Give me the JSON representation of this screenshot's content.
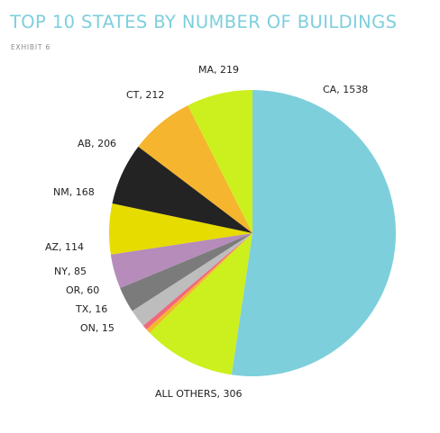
{
  "chart_data": {
    "type": "pie",
    "title": "TOP 10 STATES BY NUMBER OF BUILDINGS",
    "subtitle": "EXHIBIT 6",
    "slices": [
      {
        "label": "CA",
        "value": 1538,
        "color": "#7ecfdc",
        "text": "CA, 1538"
      },
      {
        "label": "ALL OTHERS",
        "value": 306,
        "color": "#ccf01e",
        "text": "ALL OTHERS, 306"
      },
      {
        "label": "ON",
        "value": 15,
        "color": "#f5b52e",
        "text": "ON, 15"
      },
      {
        "label": "TX",
        "value": 16,
        "color": "#f0697c",
        "text": "TX, 16"
      },
      {
        "label": "OR",
        "value": 60,
        "color": "#bdbdbd",
        "text": "OR, 60"
      },
      {
        "label": "NY",
        "value": 85,
        "color": "#7b7b7b",
        "text": "NY, 85"
      },
      {
        "label": "AZ",
        "value": 114,
        "color": "#b58cba",
        "text": "AZ, 114"
      },
      {
        "label": "NM",
        "value": 168,
        "color": "#e6dc00",
        "text": "NM, 168"
      },
      {
        "label": "AB",
        "value": 206,
        "color": "#232323",
        "text": "AB, 206"
      },
      {
        "label": "CT",
        "value": 212,
        "color": "#f5b52e",
        "text": "CT, 212"
      },
      {
        "label": "MA",
        "value": 219,
        "color": "#ccf01e",
        "text": "MA, 219"
      }
    ]
  }
}
